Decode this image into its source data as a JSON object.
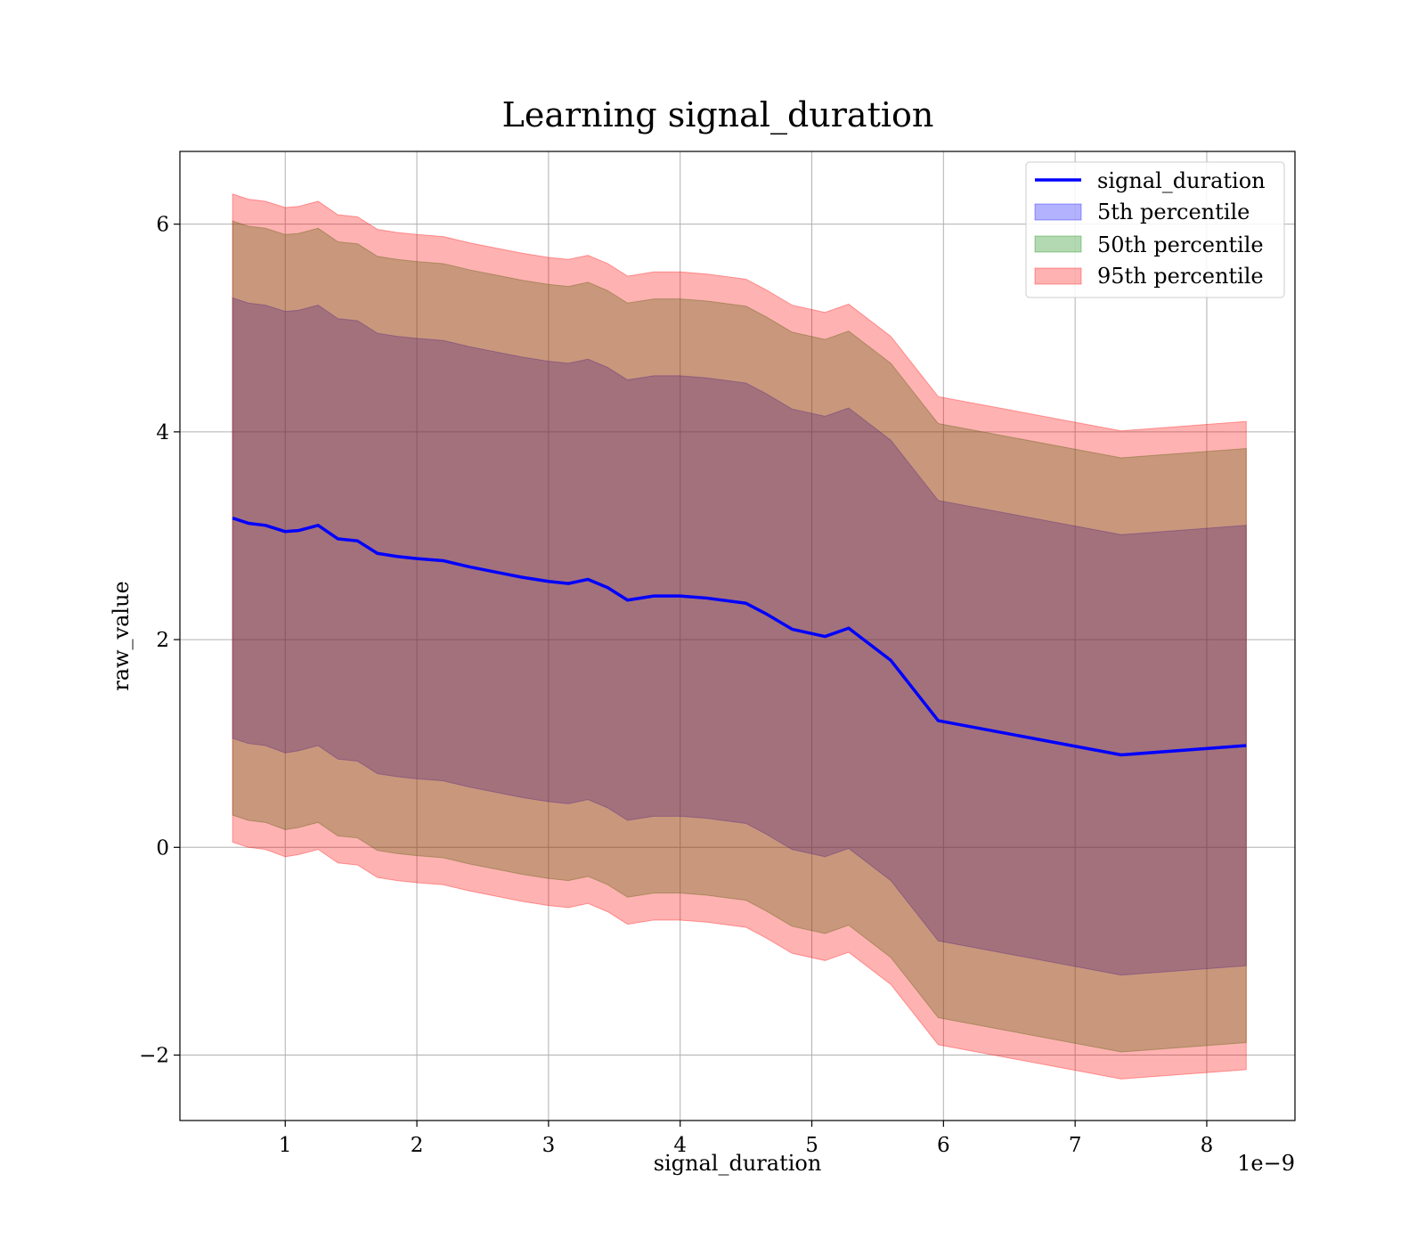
{
  "chart_data": {
    "type": "area",
    "title": "Learning signal_duration",
    "xlabel": "signal_duration",
    "ylabel": "raw_value",
    "x_offset_text": "1e−9",
    "xlim": [
      0.2,
      8.67
    ],
    "ylim": [
      -2.63,
      6.7
    ],
    "grid": true,
    "legend_position": "top-right",
    "x_ticks": [
      1,
      2,
      3,
      4,
      5,
      6,
      7,
      8
    ],
    "x_tick_labels": [
      "1",
      "2",
      "3",
      "4",
      "5",
      "6",
      "7",
      "8"
    ],
    "y_ticks": [
      -2,
      0,
      2,
      4,
      6
    ],
    "y_tick_labels": [
      "−2",
      "0",
      "2",
      "4",
      "6"
    ],
    "colors": {
      "line": "#0000ff",
      "p5": "#0000ff",
      "p50": "#008000",
      "p95": "#ff0000"
    },
    "x": [
      0.6,
      0.72,
      0.85,
      1.0,
      1.1,
      1.25,
      1.4,
      1.55,
      1.7,
      1.85,
      2.0,
      2.2,
      2.4,
      2.6,
      2.8,
      3.0,
      3.15,
      3.3,
      3.45,
      3.6,
      3.8,
      4.0,
      4.2,
      4.5,
      4.65,
      4.85,
      5.1,
      5.28,
      5.6,
      5.96,
      7.35,
      8.3
    ],
    "series": [
      {
        "name": "signal_duration",
        "kind": "line",
        "y": [
          3.17,
          3.12,
          3.1,
          3.04,
          3.05,
          3.1,
          2.97,
          2.95,
          2.83,
          2.8,
          2.78,
          2.76,
          2.7,
          2.65,
          2.6,
          2.56,
          2.54,
          2.58,
          2.5,
          2.38,
          2.42,
          2.42,
          2.4,
          2.35,
          2.25,
          2.1,
          2.03,
          2.11,
          1.8,
          1.22,
          0.89,
          0.98
        ]
      },
      {
        "name": "5th percentile",
        "kind": "band",
        "lower": [
          1.05,
          1.0,
          0.98,
          0.91,
          0.93,
          0.98,
          0.85,
          0.83,
          0.71,
          0.68,
          0.66,
          0.64,
          0.58,
          0.53,
          0.48,
          0.44,
          0.42,
          0.46,
          0.38,
          0.26,
          0.3,
          0.3,
          0.28,
          0.23,
          0.13,
          -0.02,
          -0.09,
          -0.01,
          -0.32,
          -0.9,
          -1.23,
          -1.14
        ],
        "upper": [
          5.29,
          5.24,
          5.22,
          5.16,
          5.17,
          5.22,
          5.09,
          5.07,
          4.95,
          4.92,
          4.9,
          4.88,
          4.82,
          4.77,
          4.72,
          4.68,
          4.66,
          4.7,
          4.62,
          4.5,
          4.54,
          4.54,
          4.52,
          4.47,
          4.37,
          4.22,
          4.15,
          4.23,
          3.92,
          3.34,
          3.01,
          3.1
        ]
      },
      {
        "name": "50th percentile",
        "kind": "band",
        "lower": [
          0.31,
          0.26,
          0.24,
          0.17,
          0.19,
          0.24,
          0.11,
          0.09,
          -0.03,
          -0.06,
          -0.08,
          -0.1,
          -0.16,
          -0.21,
          -0.26,
          -0.3,
          -0.32,
          -0.28,
          -0.36,
          -0.48,
          -0.44,
          -0.44,
          -0.46,
          -0.51,
          -0.61,
          -0.76,
          -0.83,
          -0.75,
          -1.06,
          -1.64,
          -1.97,
          -1.88
        ],
        "upper": [
          6.03,
          5.98,
          5.96,
          5.9,
          5.91,
          5.96,
          5.83,
          5.81,
          5.69,
          5.66,
          5.64,
          5.62,
          5.56,
          5.51,
          5.46,
          5.42,
          5.4,
          5.44,
          5.36,
          5.24,
          5.28,
          5.28,
          5.26,
          5.21,
          5.11,
          4.96,
          4.89,
          4.97,
          4.66,
          4.08,
          3.75,
          3.84
        ]
      },
      {
        "name": "95th percentile",
        "kind": "band",
        "lower": [
          0.05,
          0.0,
          -0.02,
          -0.09,
          -0.07,
          -0.02,
          -0.15,
          -0.17,
          -0.29,
          -0.32,
          -0.34,
          -0.36,
          -0.42,
          -0.47,
          -0.52,
          -0.56,
          -0.58,
          -0.54,
          -0.62,
          -0.74,
          -0.7,
          -0.7,
          -0.72,
          -0.77,
          -0.87,
          -1.02,
          -1.09,
          -1.01,
          -1.32,
          -1.9,
          -2.23,
          -2.14
        ],
        "upper": [
          6.29,
          6.24,
          6.22,
          6.16,
          6.17,
          6.22,
          6.09,
          6.07,
          5.95,
          5.92,
          5.9,
          5.88,
          5.82,
          5.77,
          5.72,
          5.68,
          5.66,
          5.7,
          5.62,
          5.5,
          5.54,
          5.54,
          5.52,
          5.47,
          5.37,
          5.22,
          5.15,
          5.23,
          4.92,
          4.34,
          4.01,
          4.1
        ]
      }
    ]
  }
}
